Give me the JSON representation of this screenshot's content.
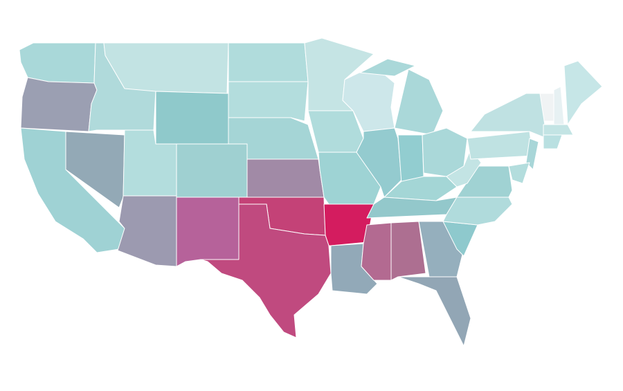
{
  "map": {
    "fills": [
      "#a9d8d9",
      "#9b9fb2",
      "#9fd2d4",
      "#93a9b6",
      "#b0dadb",
      "#c2e3e3",
      "#8fc9cb",
      "#b3dddd",
      "#9c9ab0",
      "#9fd0d1",
      "#b6629a",
      "#b0dcdc",
      "#b3dddd",
      "#a5d5d6",
      "#a18aa6",
      "#c44277",
      "#c5e4e4",
      "#b0dcdc",
      "#9ed3d4",
      "#d41c5f",
      "#92a9b8",
      "#cde7ea",
      "#94cbcf",
      "#aad8d9",
      "#aad8d9",
      "#92cdd0",
      "#aad8d9",
      "#a4d6d6",
      "#93c8cb",
      "#c04a7f",
      "#b36a91",
      "#ad6f91",
      "#95afbd",
      "#92a6b5",
      "#8ec9cd",
      "#b0dbdc",
      "#a0d2d3",
      "#c3e4e4",
      "#bfe2e2",
      "#f0f3f4",
      "#e7f1f3",
      "#c6e6e7",
      "#bfe1e2",
      "#c3e4e4",
      "#b9e0e1",
      "#a8d6d8",
      "#b3dddd"
    ]
  }
}
